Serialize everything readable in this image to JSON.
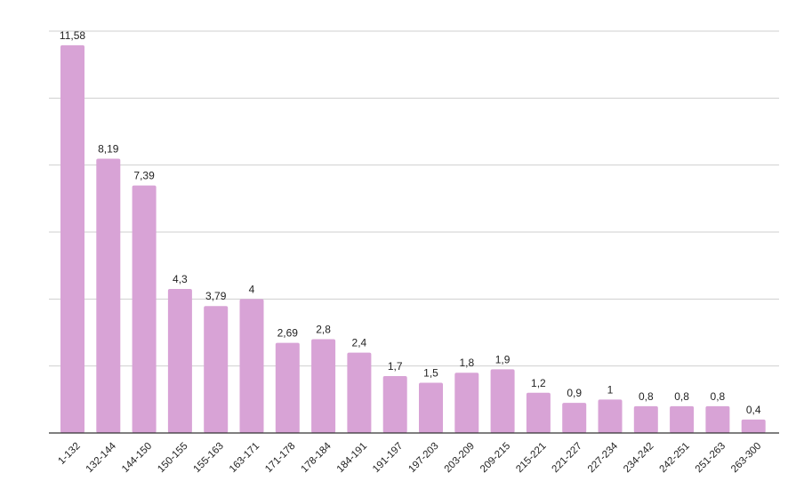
{
  "chart_data": {
    "type": "bar",
    "categories": [
      "1-132",
      "132-144",
      "144-150",
      "150-155",
      "155-163",
      "163-171",
      "171-178",
      "178-184",
      "184-191",
      "191-197",
      "197-203",
      "203-209",
      "209-215",
      "215-221",
      "221-227",
      "227-234",
      "234-242",
      "242-251",
      "251-263",
      "263-300"
    ],
    "values": [
      11.58,
      8.19,
      7.39,
      4.3,
      3.79,
      4,
      2.69,
      2.8,
      2.4,
      1.7,
      1.5,
      1.8,
      1.9,
      1.2,
      0.9,
      1,
      0.8,
      0.8,
      0.8,
      0.4
    ],
    "value_labels": [
      "11,58",
      "8,19",
      "7,39",
      "4,3",
      "3,79",
      "4",
      "2,69",
      "2,8",
      "2,4",
      "1,7",
      "1,5",
      "1,8",
      "1,9",
      "1,2",
      "0,9",
      "1",
      "0,8",
      "0,8",
      "0,8",
      "0,4"
    ],
    "title": "",
    "xlabel": "",
    "ylabel": "",
    "ylim": [
      0,
      12
    ],
    "gridlines": [
      2,
      4,
      6,
      8,
      10,
      12
    ],
    "grid": true,
    "legend": "none",
    "bar_color": "#d8a3d6",
    "grid_color": "#cfcfcf",
    "axis_color": "#333333"
  }
}
